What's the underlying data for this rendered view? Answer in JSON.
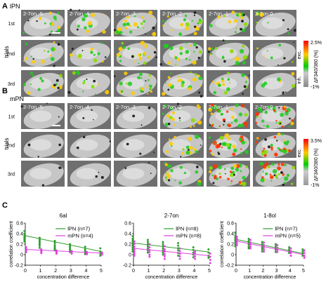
{
  "panel_a": {
    "letter": "A",
    "title": "lPN",
    "columns": [
      "2-7on -5",
      "2-7on -4",
      "2-7on -3",
      "2-7on -2",
      "2-7on -1",
      "2-7on 0"
    ],
    "rows": [
      "1st",
      "2nd",
      "3rd"
    ],
    "row_axis_label": "trials",
    "colorbar": {
      "max": "2.5%",
      "min": "-1%",
      "exc": "exc.",
      "inh": "inh.",
      "label": "ΔF340/380 (%)"
    },
    "activity_level": [
      0.35,
      0.25,
      0.6,
      0.5,
      0.45,
      0.15
    ]
  },
  "panel_b": {
    "letter": "B",
    "title": "mPN",
    "columns": [
      "2-7on -5",
      "2-7on -4",
      "2-7on -3",
      "2-7on -2",
      "2-7on -1",
      "2-7on 0"
    ],
    "rows": [
      "1st",
      "2nd",
      "3rd"
    ],
    "row_axis_label": "trials",
    "colorbar": {
      "max": "3.5%",
      "min": "-1%",
      "exc": "exc.",
      "label": "ΔF340/380 (%)"
    },
    "activity_level": [
      0.0,
      0.0,
      0.0,
      0.45,
      0.85,
      0.75
    ]
  },
  "panel_c": {
    "letter": "C",
    "ylabel": "correlation coefficient",
    "xlabel": "concentration difference",
    "colors": {
      "lPN": "#2e9e2e",
      "mPN": "#e040e0"
    }
  },
  "chart_data": [
    {
      "type": "scatter",
      "title": "6al",
      "xlabel": "concentration difference",
      "ylabel": "correlation coefficient",
      "x": [
        0,
        1,
        2,
        3,
        4,
        5
      ],
      "xlim": [
        0,
        5
      ],
      "ylim": [
        -0.2,
        0.6
      ],
      "xticks": [
        "0",
        "1",
        "2",
        "3",
        "4",
        "5"
      ],
      "yticks": [
        "-0.2",
        "0",
        "0.2",
        "0.4",
        "0.6"
      ],
      "legend_position": "top-right",
      "series": [
        {
          "name": "lPN (n=7)",
          "color": "#2e9e2e",
          "points": [
            [
              0,
              0.45
            ],
            [
              0,
              0.4
            ],
            [
              0,
              0.36
            ],
            [
              0,
              0.33
            ],
            [
              0,
              0.3
            ],
            [
              0,
              0.28
            ],
            [
              0,
              0.25
            ],
            [
              1,
              0.32
            ],
            [
              1,
              0.28
            ],
            [
              1,
              0.25
            ],
            [
              1,
              0.22
            ],
            [
              1,
              0.2
            ],
            [
              1,
              0.17
            ],
            [
              1,
              0.13
            ],
            [
              2,
              0.26
            ],
            [
              2,
              0.22
            ],
            [
              2,
              0.18
            ],
            [
              2,
              0.15
            ],
            [
              2,
              0.12
            ],
            [
              2,
              0.1
            ],
            [
              2,
              0.08
            ],
            [
              3,
              0.2
            ],
            [
              3,
              0.16
            ],
            [
              3,
              0.13
            ],
            [
              3,
              0.1
            ],
            [
              3,
              0.07
            ],
            [
              3,
              0.05
            ],
            [
              4,
              0.15
            ],
            [
              4,
              0.1
            ],
            [
              4,
              0.07
            ],
            [
              4,
              0.04
            ],
            [
              4,
              0.01
            ],
            [
              5,
              0.12
            ],
            [
              5,
              0.06
            ],
            [
              5,
              0.02
            ],
            [
              5,
              -0.02
            ]
          ],
          "fit": [
            [
              0,
              0.36
            ],
            [
              5,
              0.06
            ]
          ]
        },
        {
          "name": "mPN (n=4)",
          "color": "#e040e0",
          "points": [
            [
              0,
              0.14
            ],
            [
              0,
              0.1
            ],
            [
              0,
              0.08
            ],
            [
              0,
              0.05
            ],
            [
              1,
              0.1
            ],
            [
              1,
              0.07
            ],
            [
              1,
              0.05
            ],
            [
              1,
              0.03
            ],
            [
              2,
              0.08
            ],
            [
              2,
              0.06
            ],
            [
              2,
              0.04
            ],
            [
              2,
              0.02
            ],
            [
              3,
              0.07
            ],
            [
              3,
              0.04
            ],
            [
              3,
              0.02
            ],
            [
              4,
              0.05
            ],
            [
              4,
              0.03
            ],
            [
              4,
              0.01
            ],
            [
              5,
              0.04
            ],
            [
              5,
              0.02
            ],
            [
              5,
              0.0
            ]
          ],
          "fit": [
            [
              0,
              0.1
            ],
            [
              5,
              0.03
            ]
          ]
        }
      ]
    },
    {
      "type": "scatter",
      "title": "2-7on",
      "xlabel": "concentration difference",
      "ylabel": "",
      "x": [
        0,
        1,
        2,
        3,
        4,
        5
      ],
      "xlim": [
        0,
        5
      ],
      "ylim": [
        -0.2,
        0.6
      ],
      "xticks": [
        "0",
        "1",
        "2",
        "3",
        "4",
        "5"
      ],
      "yticks": [
        "-0.2",
        "0",
        "0.2",
        "0.4",
        "0.6"
      ],
      "legend_position": "top-right",
      "series": [
        {
          "name": "lPN (n=8)",
          "color": "#2e9e2e",
          "points": [
            [
              0,
              0.35
            ],
            [
              0,
              0.3
            ],
            [
              0,
              0.26
            ],
            [
              0,
              0.22
            ],
            [
              0,
              0.18
            ],
            [
              0,
              0.14
            ],
            [
              0,
              0.1
            ],
            [
              0,
              0.06
            ],
            [
              1,
              0.28
            ],
            [
              1,
              0.24
            ],
            [
              1,
              0.2
            ],
            [
              1,
              0.16
            ],
            [
              1,
              0.12
            ],
            [
              1,
              0.08
            ],
            [
              1,
              0.04
            ],
            [
              2,
              0.24
            ],
            [
              2,
              0.2
            ],
            [
              2,
              0.16
            ],
            [
              2,
              0.12
            ],
            [
              2,
              0.08
            ],
            [
              2,
              0.04
            ],
            [
              2,
              0.0
            ],
            [
              3,
              0.22
            ],
            [
              3,
              0.17
            ],
            [
              3,
              0.12
            ],
            [
              3,
              0.08
            ],
            [
              3,
              0.03
            ],
            [
              3,
              -0.02
            ],
            [
              4,
              0.14
            ],
            [
              4,
              0.09
            ],
            [
              4,
              0.04
            ],
            [
              4,
              0.0
            ],
            [
              4,
              -0.05
            ],
            [
              5,
              0.1
            ],
            [
              5,
              0.04
            ],
            [
              5,
              -0.02
            ],
            [
              5,
              -0.06
            ]
          ],
          "fit": [
            [
              0,
              0.22
            ],
            [
              5,
              0.05
            ]
          ]
        },
        {
          "name": "mPN (n=8)",
          "color": "#e040e0",
          "points": [
            [
              0,
              0.25
            ],
            [
              0,
              0.2
            ],
            [
              0,
              0.15
            ],
            [
              0,
              0.1
            ],
            [
              0,
              0.06
            ],
            [
              0,
              0.02
            ],
            [
              0,
              -0.02
            ],
            [
              1,
              0.2
            ],
            [
              1,
              0.14
            ],
            [
              1,
              0.09
            ],
            [
              1,
              0.05
            ],
            [
              1,
              0.0
            ],
            [
              1,
              -0.04
            ],
            [
              2,
              0.16
            ],
            [
              2,
              0.1
            ],
            [
              2,
              0.06
            ],
            [
              2,
              0.01
            ],
            [
              2,
              -0.03
            ],
            [
              2,
              -0.08
            ],
            [
              3,
              0.12
            ],
            [
              3,
              0.07
            ],
            [
              3,
              0.02
            ],
            [
              3,
              -0.03
            ],
            [
              3,
              -0.08
            ],
            [
              4,
              0.06
            ],
            [
              4,
              0.02
            ],
            [
              4,
              -0.03
            ],
            [
              4,
              -0.08
            ],
            [
              5,
              0.02
            ],
            [
              5,
              -0.04
            ],
            [
              5,
              -0.1
            ],
            [
              5,
              -0.16
            ]
          ],
          "fit": [
            [
              0,
              0.12
            ],
            [
              5,
              -0.02
            ]
          ]
        }
      ]
    },
    {
      "type": "scatter",
      "title": "1-8ol",
      "xlabel": "concentration difference",
      "ylabel": "correlation coefficient",
      "x": [
        0,
        1,
        2,
        3,
        4,
        5
      ],
      "xlim": [
        0,
        5
      ],
      "ylim": [
        -0.2,
        0.6
      ],
      "xticks": [
        "0",
        "1",
        "2",
        "3",
        "4",
        "5"
      ],
      "yticks": [
        "-0.2",
        "0",
        "0.2",
        "0.4",
        "0.6"
      ],
      "legend_position": "top-right",
      "series": [
        {
          "name": "lPN (n=7)",
          "color": "#2e9e2e",
          "points": [
            [
              0,
              0.42
            ],
            [
              0,
              0.36
            ],
            [
              0,
              0.32
            ],
            [
              0,
              0.28
            ],
            [
              0,
              0.24
            ],
            [
              0,
              0.2
            ],
            [
              0,
              0.16
            ],
            [
              1,
              0.3
            ],
            [
              1,
              0.26
            ],
            [
              1,
              0.22
            ],
            [
              1,
              0.19
            ],
            [
              1,
              0.15
            ],
            [
              1,
              0.12
            ],
            [
              2,
              0.24
            ],
            [
              2,
              0.2
            ],
            [
              2,
              0.16
            ],
            [
              2,
              0.13
            ],
            [
              2,
              0.1
            ],
            [
              2,
              0.06
            ],
            [
              3,
              0.2
            ],
            [
              3,
              0.16
            ],
            [
              3,
              0.12
            ],
            [
              3,
              0.09
            ],
            [
              3,
              0.05
            ],
            [
              4,
              0.14
            ],
            [
              4,
              0.1
            ],
            [
              4,
              0.06
            ],
            [
              4,
              0.03
            ],
            [
              5,
              0.1
            ],
            [
              5,
              0.06
            ],
            [
              5,
              0.02
            ],
            [
              5,
              -0.02
            ]
          ],
          "fit": [
            [
              0,
              0.29
            ],
            [
              5,
              0.02
            ]
          ]
        },
        {
          "name": "mPN (n=5)",
          "color": "#e040e0",
          "points": [
            [
              0,
              0.34
            ],
            [
              0,
              0.3
            ],
            [
              0,
              0.26
            ],
            [
              0,
              0.22
            ],
            [
              0,
              0.18
            ],
            [
              1,
              0.28
            ],
            [
              1,
              0.23
            ],
            [
              1,
              0.19
            ],
            [
              1,
              0.15
            ],
            [
              1,
              0.12
            ],
            [
              2,
              0.23
            ],
            [
              2,
              0.18
            ],
            [
              2,
              0.14
            ],
            [
              2,
              0.1
            ],
            [
              2,
              0.06
            ],
            [
              3,
              0.18
            ],
            [
              3,
              0.13
            ],
            [
              3,
              0.09
            ],
            [
              3,
              0.05
            ],
            [
              4,
              0.12
            ],
            [
              4,
              0.07
            ],
            [
              4,
              0.03
            ],
            [
              4,
              -0.02
            ],
            [
              5,
              0.08
            ],
            [
              5,
              0.03
            ],
            [
              5,
              -0.02
            ],
            [
              5,
              -0.06
            ]
          ],
          "fit": [
            [
              0,
              0.26
            ],
            [
              5,
              0.0
            ]
          ]
        }
      ]
    }
  ]
}
